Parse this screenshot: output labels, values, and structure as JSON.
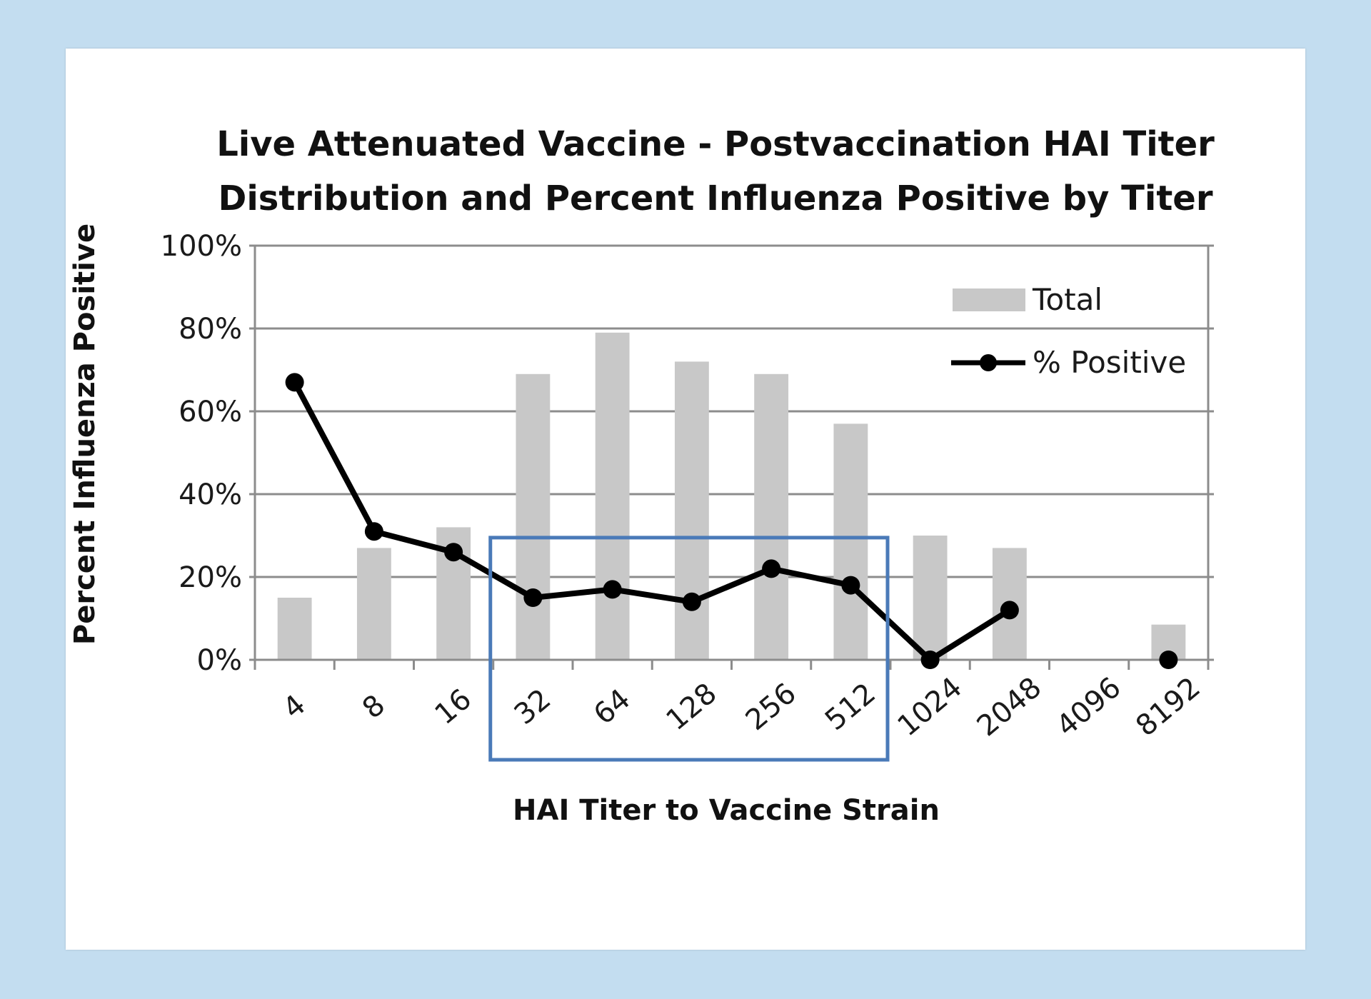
{
  "chart_data": {
    "type": "bar",
    "title": [
      "Live Attenuated Vaccine - Postvaccination HAI Titer",
      "Distribution and Percent Influenza Positive by Titer"
    ],
    "xlabel": "HAI Titer to Vaccine Strain",
    "ylabel": "Percent Influenza Positive",
    "ylim": [
      0,
      1
    ],
    "yticks": [
      0,
      0.2,
      0.4,
      0.6,
      0.8,
      1.0
    ],
    "ytick_labels": [
      "0%",
      "20%",
      "40%",
      "60%",
      "80%",
      "100%"
    ],
    "categories": [
      "4",
      "8",
      "16",
      "32",
      "64",
      "128",
      "256",
      "512",
      "1024",
      "2048",
      "4096",
      "8192"
    ],
    "grid": "horizontal",
    "legend_position": "top-right",
    "series": [
      {
        "name": "Total",
        "type": "bar",
        "color": "#c8c8c8",
        "values": [
          0.15,
          0.27,
          0.32,
          0.69,
          0.79,
          0.72,
          0.69,
          0.57,
          0.3,
          0.27,
          0,
          0.085
        ]
      },
      {
        "name": "% Positive",
        "type": "line",
        "color": "#000000",
        "values": [
          0.67,
          0.31,
          0.26,
          0.15,
          0.17,
          0.14,
          0.22,
          0.18,
          0,
          0.12,
          null,
          0
        ]
      }
    ],
    "highlight": {
      "from_category": "32",
      "to_category": "512",
      "color": "#4a7ab8"
    }
  }
}
